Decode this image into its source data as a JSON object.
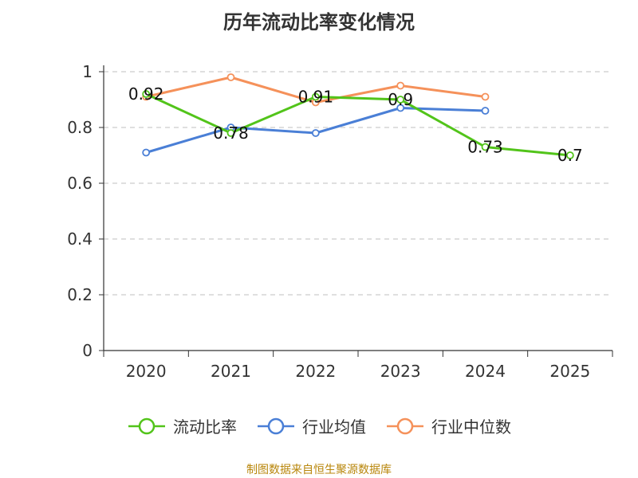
{
  "chart_data": {
    "type": "line",
    "title": "历年流动比率变化情况",
    "categories": [
      "2020",
      "2021",
      "2022",
      "2023",
      "2024",
      "2025"
    ],
    "ylim": [
      0,
      1
    ],
    "yticks": [
      "0",
      "0.2",
      "0.4",
      "0.6",
      "0.8",
      "1"
    ],
    "grid": true,
    "series": [
      {
        "name": "流动比率",
        "color": "#52c41a",
        "values": [
          0.92,
          0.78,
          0.91,
          0.9,
          0.73,
          0.7
        ],
        "labels": [
          "0.92",
          "0.78",
          "0.91",
          "0.9",
          "0.73",
          "0.7"
        ]
      },
      {
        "name": "行业均值",
        "color": "#4a7fd6",
        "values": [
          0.71,
          0.8,
          0.78,
          0.87,
          0.86,
          null
        ]
      },
      {
        "name": "行业中位数",
        "color": "#f5915a",
        "values": [
          0.91,
          0.98,
          0.89,
          0.95,
          0.91,
          null
        ]
      }
    ],
    "legend_position": "bottom"
  },
  "source": "制图数据来自恒生聚源数据库"
}
